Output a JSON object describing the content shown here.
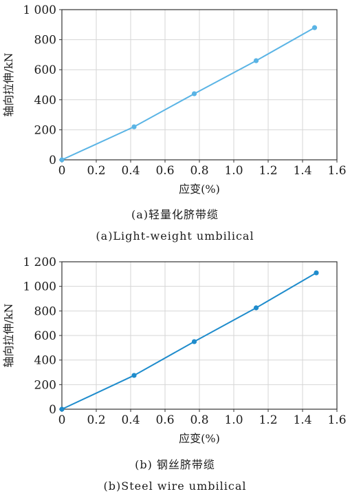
{
  "chart_data": [
    {
      "type": "line",
      "title": "(a)轻量化脐带缆",
      "subtitle": "(a)Light-weight umbilical",
      "xlabel": "应变(%)",
      "ylabel": "轴向拉伸/kN",
      "xlim": [
        0,
        1.6
      ],
      "ylim": [
        0,
        1000
      ],
      "xticks": [
        "0",
        "0.2",
        "0.4",
        "0.6",
        "0.8",
        "1.0",
        "1.2",
        "1.4",
        "1.6"
      ],
      "yticks": [
        "0",
        "200",
        "400",
        "600",
        "800",
        "1 000"
      ],
      "grid": true,
      "color": "#5ab4e5",
      "series": [
        {
          "x": [
            0,
            0.42,
            0.77,
            1.13,
            1.47
          ],
          "y": [
            0,
            220,
            440,
            660,
            880
          ]
        }
      ]
    },
    {
      "type": "line",
      "title": "(b) 钢丝脐带缆",
      "subtitle": "(b)Steel wire umbilical",
      "xlabel": "应变(%)",
      "ylabel": "轴向拉伸/kN",
      "xlim": [
        0,
        1.6
      ],
      "ylim": [
        0,
        1200
      ],
      "xticks": [
        "0",
        "0.2",
        "0.4",
        "0.6",
        "0.8",
        "1.0",
        "1.2",
        "1.4",
        "1.6"
      ],
      "yticks": [
        "0",
        "200",
        "400",
        "600",
        "800",
        "1 000",
        "1 200"
      ],
      "grid": true,
      "color": "#1f8ccc",
      "series": [
        {
          "x": [
            0,
            0.42,
            0.77,
            1.13,
            1.48
          ],
          "y": [
            0,
            275,
            550,
            825,
            1110
          ]
        }
      ]
    }
  ]
}
